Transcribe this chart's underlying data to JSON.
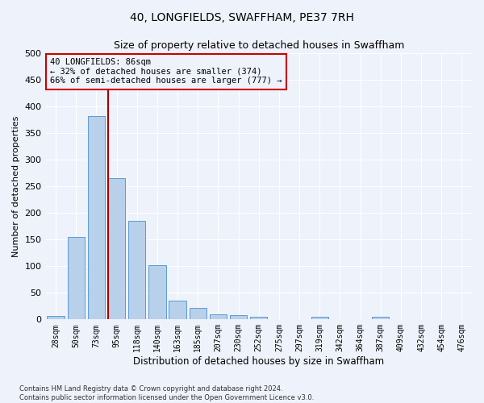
{
  "title": "40, LONGFIELDS, SWAFFHAM, PE37 7RH",
  "subtitle": "Size of property relative to detached houses in Swaffham",
  "xlabel": "Distribution of detached houses by size in Swaffham",
  "ylabel": "Number of detached properties",
  "bar_values": [
    6,
    155,
    381,
    265,
    185,
    102,
    36,
    21,
    10,
    8,
    5,
    1,
    0,
    5,
    0,
    0,
    5,
    0,
    0,
    0,
    0
  ],
  "bar_labels": [
    "28sqm",
    "50sqm",
    "73sqm",
    "95sqm",
    "118sqm",
    "140sqm",
    "163sqm",
    "185sqm",
    "207sqm",
    "230sqm",
    "252sqm",
    "275sqm",
    "297sqm",
    "319sqm",
    "342sqm",
    "364sqm",
    "387sqm",
    "409sqm",
    "432sqm",
    "454sqm",
    "476sqm"
  ],
  "bar_color": "#b8d0ea",
  "bar_edge_color": "#5b9bd5",
  "vline_color": "#aa0000",
  "annotation_title": "40 LONGFIELDS: 86sqm",
  "annotation_line1": "← 32% of detached houses are smaller (374)",
  "annotation_line2": "66% of semi-detached houses are larger (777) →",
  "annotation_box_color": "#cc0000",
  "ylim": [
    0,
    500
  ],
  "yticks": [
    0,
    50,
    100,
    150,
    200,
    250,
    300,
    350,
    400,
    450,
    500
  ],
  "footer_line1": "Contains HM Land Registry data © Crown copyright and database right 2024.",
  "footer_line2": "Contains public sector information licensed under the Open Government Licence v3.0.",
  "background_color": "#eef2fb",
  "grid_color": "#ffffff"
}
